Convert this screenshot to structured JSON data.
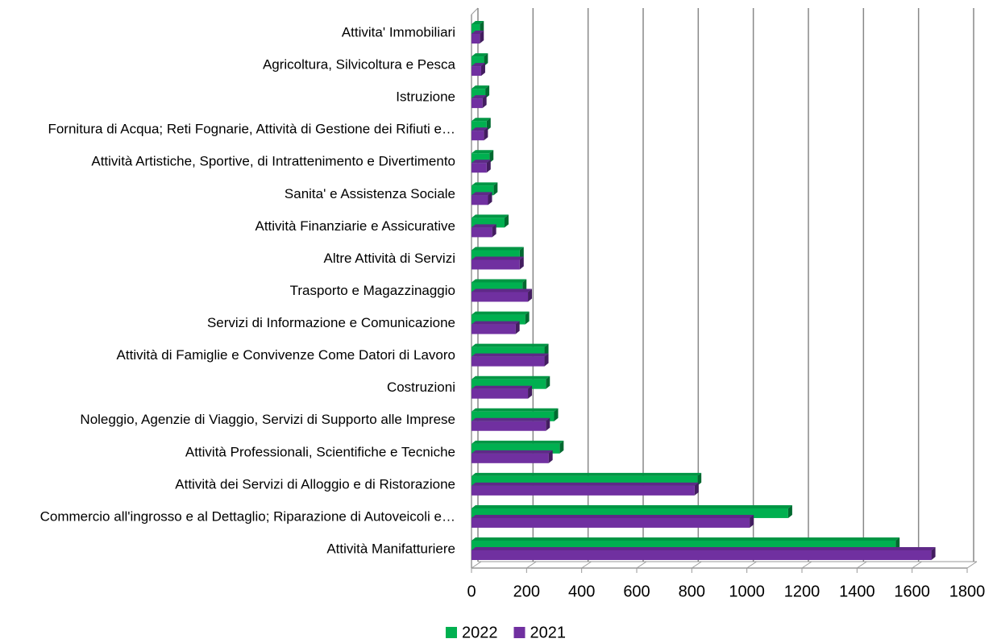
{
  "chart_data": {
    "type": "bar",
    "orientation": "horizontal",
    "categories": [
      "Attivita' Immobiliari",
      "Agricoltura, Silvicoltura e Pesca",
      "Istruzione",
      "Fornitura di Acqua; Reti Fognarie, Attività di Gestione dei Rifiuti e…",
      "Attività Artistiche, Sportive, di Intrattenimento e Divertimento",
      "Sanita' e Assistenza Sociale",
      "Attività Finanziarie e Assicurative",
      "Altre Attività di Servizi",
      "Trasporto e Magazzinaggio",
      "Servizi di Informazione e Comunicazione",
      "Attività di Famiglie e Convivenze Come Datori di Lavoro",
      "Costruzioni",
      "Noleggio, Agenzie di Viaggio, Servizi di Supporto alle Imprese",
      "Attività Professionali, Scientifiche e Tecniche",
      "Attività dei Servizi di Alloggio e di Ristorazione",
      "Commercio all'ingrosso e al Dettaglio; Riparazione di Autoveicoli e…",
      "Attività Manifatturiere"
    ],
    "series": [
      {
        "name": "2022",
        "color": "#00b050",
        "values": [
          30,
          45,
          50,
          55,
          65,
          80,
          120,
          175,
          185,
          195,
          265,
          270,
          300,
          320,
          820,
          1150,
          1540
        ]
      },
      {
        "name": "2021",
        "color": "#7030a0",
        "values": [
          30,
          35,
          40,
          45,
          55,
          60,
          75,
          175,
          205,
          160,
          265,
          205,
          270,
          280,
          810,
          1010,
          1670
        ]
      }
    ],
    "xlim": [
      0,
      1800
    ],
    "xticks": [
      0,
      200,
      400,
      600,
      800,
      1000,
      1200,
      1400,
      1600,
      1800
    ],
    "grid": true,
    "legend": "bottom"
  }
}
